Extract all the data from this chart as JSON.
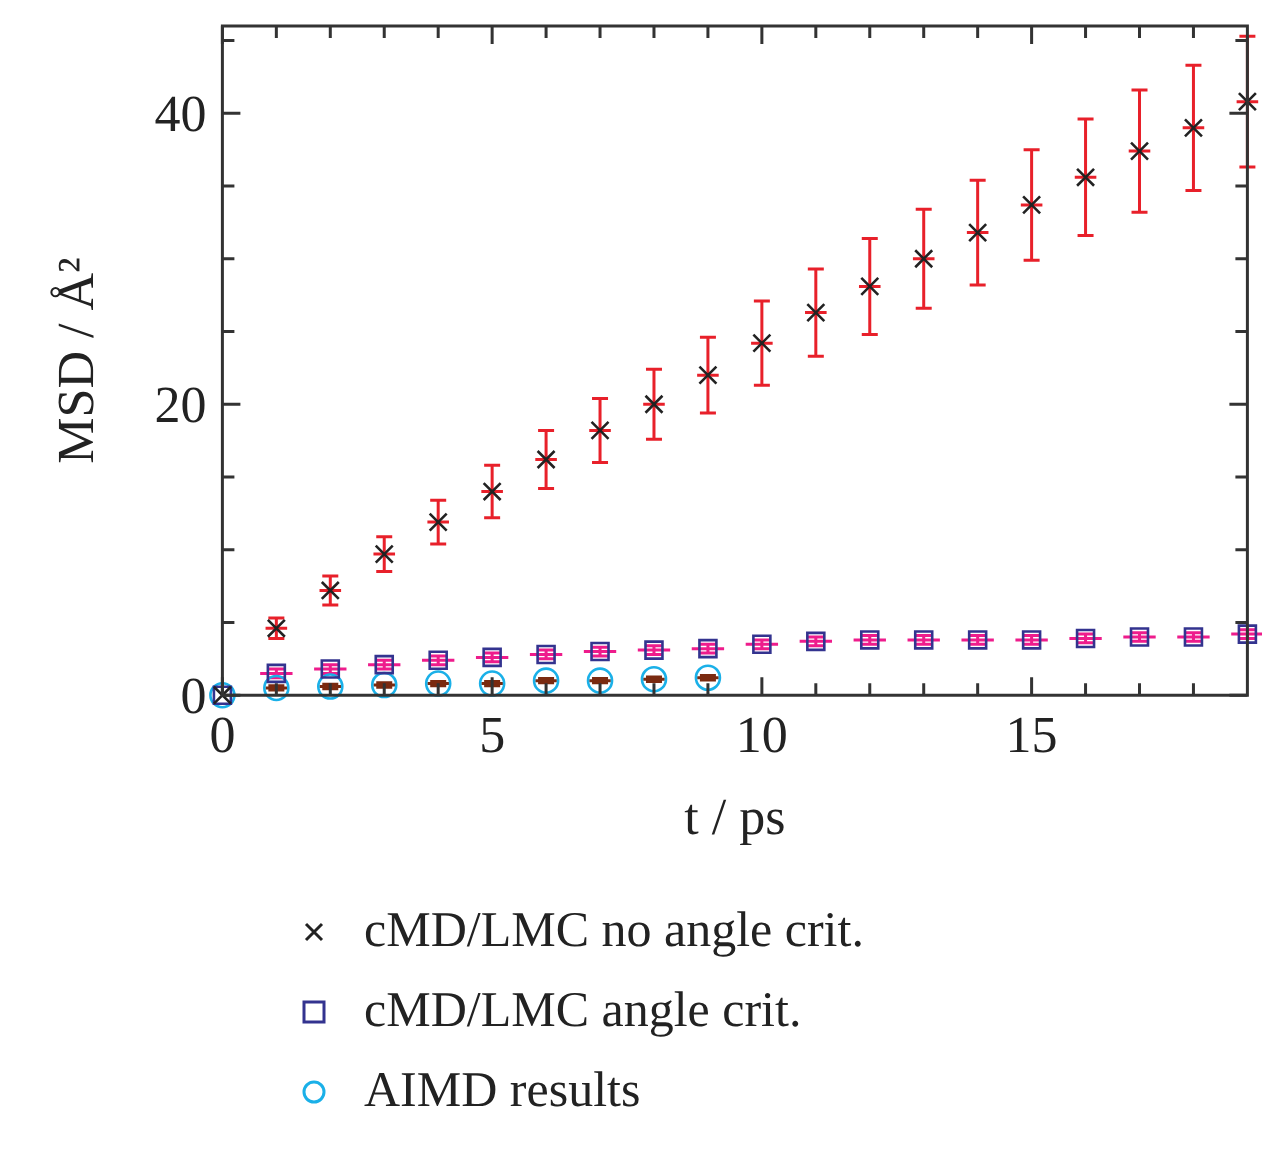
{
  "chart_data": {
    "type": "scatter",
    "xlabel": "t / ps",
    "ylabel": "MSD / Å²",
    "xlim": [
      0,
      19
    ],
    "ylim": [
      0,
      46
    ],
    "xticks": [
      0,
      {
        "value": 1,
        "label": null
      },
      {
        "value": 2,
        "label": null
      },
      {
        "value": 3,
        "label": null
      },
      {
        "value": 4,
        "label": null
      },
      5,
      {
        "value": 6,
        "label": null
      },
      {
        "value": 7,
        "label": null
      },
      {
        "value": 8,
        "label": null
      },
      {
        "value": 9,
        "label": null
      },
      10,
      {
        "value": 11,
        "label": null
      },
      {
        "value": 12,
        "label": null
      },
      {
        "value": 13,
        "label": null
      },
      {
        "value": 14,
        "label": null
      },
      15,
      {
        "value": 16,
        "label": null
      },
      {
        "value": 17,
        "label": null
      },
      {
        "value": 18,
        "label": null
      }
    ],
    "yticks": [
      0,
      {
        "value": 5,
        "label": null
      },
      {
        "value": 10,
        "label": null
      },
      {
        "value": 15,
        "label": null
      },
      20,
      {
        "value": 25,
        "label": null
      },
      {
        "value": 30,
        "label": null
      },
      {
        "value": 35,
        "label": null
      },
      40,
      {
        "value": 45,
        "label": null
      }
    ],
    "grid": false,
    "legend": "bottom",
    "series": [
      {
        "name": "cMD/LMC no angle crit.",
        "color": "#222222",
        "marker": "cross",
        "x": [
          0,
          1,
          2,
          3,
          4,
          5,
          6,
          7,
          8,
          9,
          10,
          11,
          12,
          13,
          14,
          15,
          16,
          17,
          18,
          19
        ],
        "values": [
          0,
          4.6,
          7.2,
          9.7,
          11.9,
          14.0,
          16.2,
          18.2,
          20.0,
          22.0,
          24.2,
          26.3,
          28.1,
          30.0,
          31.8,
          33.7,
          35.6,
          37.4,
          39.0,
          40.8
        ],
        "errors": [
          null,
          0.7,
          1.0,
          1.2,
          1.5,
          1.8,
          2.0,
          2.2,
          2.4,
          2.6,
          2.9,
          3.0,
          3.3,
          3.4,
          3.6,
          3.8,
          4.0,
          4.2,
          4.3,
          4.5
        ],
        "xerrors": [
          null,
          0.2,
          0.2,
          0.2,
          0.2,
          0.2,
          0.2,
          0.2,
          0.2,
          0.2,
          0.2,
          0.2,
          0.2,
          0.2,
          0.2,
          0.2,
          0.2,
          0.2,
          0.2,
          0.2
        ]
      },
      {
        "name": "cMD/LMC angle crit.",
        "color": "#33338f",
        "marker": "square",
        "x": [
          0,
          1,
          2,
          3,
          4,
          5,
          6,
          7,
          8,
          9,
          10,
          11,
          12,
          13,
          14,
          15,
          16,
          17,
          18,
          19
        ],
        "values": [
          0,
          1.5,
          1.8,
          2.1,
          2.4,
          2.6,
          2.8,
          3.0,
          3.1,
          3.2,
          3.5,
          3.7,
          3.8,
          3.8,
          3.8,
          3.8,
          3.9,
          4.0,
          4.0,
          4.2
        ],
        "errors": [
          null,
          0.3,
          0.3,
          0.3,
          0.3,
          0.3,
          0.3,
          0.3,
          0.3,
          0.3,
          0.3,
          0.3,
          0.3,
          0.3,
          0.3,
          0.3,
          0.3,
          0.3,
          0.3,
          0.3
        ],
        "xerrors": [
          null,
          0.3,
          0.3,
          0.3,
          0.3,
          0.3,
          0.3,
          0.3,
          0.3,
          0.3,
          0.3,
          0.3,
          0.3,
          0.3,
          0.3,
          0.3,
          0.3,
          0.3,
          0.3,
          0.3
        ]
      },
      {
        "name": "AIMD results",
        "color": "#1ab0e8",
        "marker": "circle",
        "x": [
          0,
          1,
          2,
          3,
          4,
          5,
          6,
          7,
          8,
          9
        ],
        "values": [
          0,
          0.5,
          0.6,
          0.7,
          0.8,
          0.8,
          1.0,
          1.0,
          1.1,
          1.2
        ],
        "errors": [
          null,
          0.15,
          0.15,
          0.15,
          0.15,
          0.15,
          0.15,
          0.15,
          0.15,
          0.15
        ],
        "xerrors": [
          null,
          0.2,
          0.2,
          0.2,
          0.2,
          0.2,
          0.2,
          0.2,
          0.2,
          0.2
        ]
      }
    ]
  }
}
